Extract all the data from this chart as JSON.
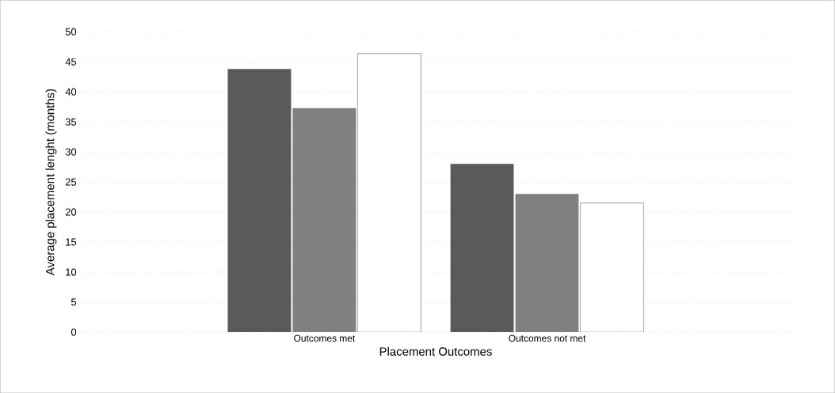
{
  "chart_data": {
    "type": "bar",
    "xlabel": "Placement Outcomes",
    "ylabel": "Average placement lenght (months)",
    "categories": [
      "Outcomes met",
      "Outcomes not met"
    ],
    "series": [
      {
        "color": "#5a5a5a",
        "values": [
          43.8,
          28
        ]
      },
      {
        "color": "#808080",
        "values": [
          37.3,
          23
        ]
      },
      {
        "color": "#ffffff",
        "values": [
          46.4,
          21.5
        ]
      }
    ],
    "ylim": [
      0,
      50
    ],
    "yticks": [
      0,
      5,
      10,
      15,
      20,
      25,
      30,
      35,
      40,
      45,
      50
    ],
    "grid": "y"
  }
}
